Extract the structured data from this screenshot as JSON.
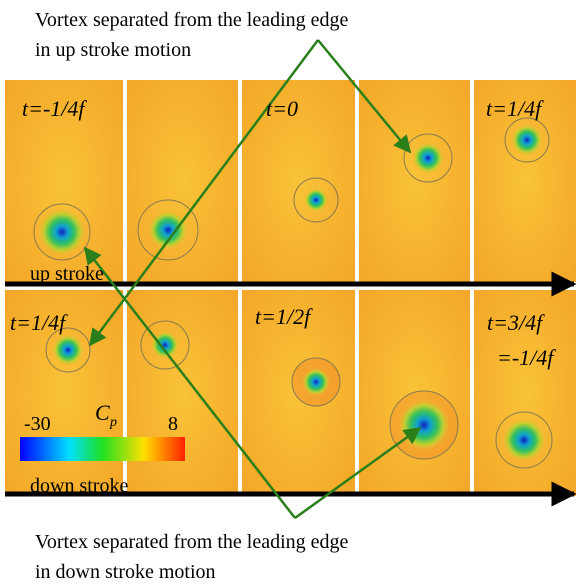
{
  "caption_top": [
    "Vortex separated from the leading edge",
    "in up stroke motion"
  ],
  "caption_bottom": [
    "Vortex separated from the leading edge",
    "in down stroke motion"
  ],
  "time_labels": [
    "t=-1/4f",
    "t=0",
    "t=1/4f",
    "t=1/4f",
    "t=1/2f",
    "t=3/4f",
    "=-1/4f"
  ],
  "stroke_labels": [
    "up stroke",
    "down stroke"
  ],
  "colorbar": {
    "min": -30,
    "symbol": "C",
    "subscript": "p",
    "max": 8
  }
}
